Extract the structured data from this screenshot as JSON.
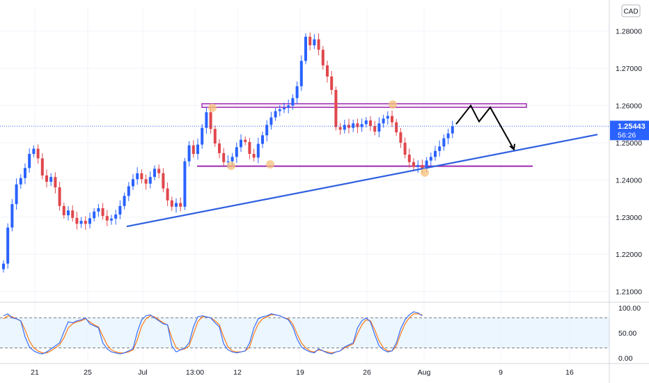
{
  "currency_label": "CAD",
  "current_price": {
    "value": "1.25443",
    "countdown": "56:26",
    "price": 1.25443,
    "color": "#2962ff"
  },
  "colors": {
    "up": "#2962ff",
    "down": "#e0474c",
    "trendline": "#2f5fe0",
    "zone": "#9c27b0",
    "osc_k": "#2962ff",
    "osc_d": "#ff6d00",
    "highlight": "#f5c07a",
    "grid": "#f0f3fa"
  },
  "chart_data": [
    {
      "type": "candlestick",
      "title": "",
      "x_tick_labels": [
        "21",
        "25",
        "Jul",
        "13:00",
        "12",
        "19",
        "26",
        "Aug",
        "9",
        "16"
      ],
      "y_tick_labels": [
        "1.21000",
        "1.22000",
        "1.23000",
        "1.24000",
        "1.25000",
        "1.26000",
        "1.27000",
        "1.28000"
      ],
      "ylim": [
        1.2075,
        1.2865
      ],
      "close": [
        1.2175,
        1.2272,
        1.2335,
        1.2388,
        1.2405,
        1.2432,
        1.247,
        1.2484,
        1.2458,
        1.2412,
        1.2395,
        1.2408,
        1.238,
        1.233,
        1.2305,
        1.2318,
        1.2298,
        1.2282,
        1.229,
        1.2282,
        1.2297,
        1.2315,
        1.2324,
        1.2303,
        1.2291,
        1.2296,
        1.2307,
        1.233,
        1.2357,
        1.2383,
        1.2402,
        1.2418,
        1.2402,
        1.239,
        1.2408,
        1.243,
        1.2418,
        1.2377,
        1.2345,
        1.2328,
        1.2338,
        1.2328,
        1.245,
        1.2493,
        1.247,
        1.2495,
        1.254,
        1.2582,
        1.2537,
        1.2498,
        1.2472,
        1.2448,
        1.245,
        1.2462,
        1.2488,
        1.2508,
        1.2502,
        1.247,
        1.246,
        1.2497,
        1.252,
        1.2548,
        1.2568,
        1.2585,
        1.259,
        1.2594,
        1.26,
        1.262,
        1.2652,
        1.272,
        1.2785,
        1.2762,
        1.2778,
        1.275,
        1.2708,
        1.2678,
        1.2642,
        1.2542,
        1.2535,
        1.2548,
        1.254,
        1.2552,
        1.2542,
        1.255,
        1.256,
        1.2545,
        1.253,
        1.2552,
        1.2565,
        1.2572,
        1.2555,
        1.2528,
        1.25,
        1.2468,
        1.2448,
        1.2435,
        1.244,
        1.243,
        1.2452,
        1.2462,
        1.2478,
        1.249,
        1.2512,
        1.2525,
        1.2544
      ],
      "oscillator": {
        "k": [
          84,
          88,
          80,
          78,
          74,
          42,
          22,
          14,
          10,
          8,
          12,
          18,
          24,
          30,
          52,
          72,
          70,
          74,
          76,
          80,
          68,
          64,
          60,
          30,
          18,
          12,
          10,
          8,
          10,
          14,
          18,
          52,
          76,
          84,
          86,
          80,
          74,
          68,
          66,
          24,
          12,
          16,
          20,
          30,
          62,
          82,
          84,
          82,
          80,
          70,
          62,
          28,
          16,
          12,
          10,
          12,
          14,
          30,
          60,
          78,
          82,
          84,
          88,
          86,
          84,
          80,
          76,
          62,
          38,
          22,
          16,
          12,
          10,
          18,
          14,
          10,
          8,
          12,
          14,
          22,
          26,
          30,
          60,
          74,
          80,
          72,
          46,
          24,
          16,
          12,
          14,
          30,
          58,
          76,
          86,
          92,
          90,
          84
        ],
        "d": [
          78,
          84,
          82,
          78,
          74,
          56,
          34,
          20,
          14,
          10,
          10,
          14,
          20,
          26,
          40,
          60,
          68,
          72,
          74,
          78,
          72,
          66,
          62,
          44,
          26,
          16,
          12,
          10,
          10,
          12,
          16,
          36,
          64,
          78,
          84,
          82,
          76,
          70,
          66,
          40,
          20,
          16,
          18,
          24,
          48,
          72,
          82,
          82,
          80,
          74,
          66,
          42,
          22,
          14,
          12,
          12,
          14,
          22,
          48,
          68,
          78,
          82,
          86,
          86,
          84,
          80,
          78,
          68,
          48,
          30,
          20,
          14,
          12,
          16,
          14,
          12,
          10,
          12,
          14,
          20,
          24,
          28,
          48,
          66,
          76,
          74,
          56,
          34,
          20,
          14,
          14,
          24,
          48,
          68,
          80,
          88,
          88,
          86
        ],
        "levels": [
          80,
          20
        ],
        "y_tick_labels": [
          "100.00",
          "50.00",
          "0.00"
        ]
      }
    }
  ]
}
